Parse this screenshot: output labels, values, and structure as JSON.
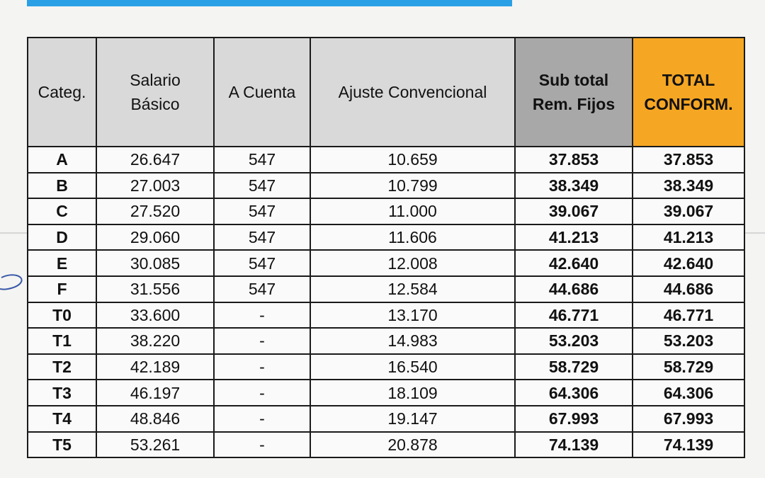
{
  "headers": {
    "categ": "Categ.",
    "salario_l1": "Salario",
    "salario_l2": "Básico",
    "a_cuenta": "A Cuenta",
    "ajuste": "Ajuste Convencional",
    "subtotal_l1": "Sub total",
    "subtotal_l2": "Rem. Fijos",
    "total_l1": "TOTAL",
    "total_l2": "CONFORM."
  },
  "rows": [
    {
      "cat": "A",
      "salario": "26.647",
      "cuenta": "547",
      "ajuste": "10.659",
      "subtotal": "37.853",
      "total": "37.853"
    },
    {
      "cat": "B",
      "salario": "27.003",
      "cuenta": "547",
      "ajuste": "10.799",
      "subtotal": "38.349",
      "total": "38.349"
    },
    {
      "cat": "C",
      "salario": "27.520",
      "cuenta": "547",
      "ajuste": "11.000",
      "subtotal": "39.067",
      "total": "39.067"
    },
    {
      "cat": "D",
      "salario": "29.060",
      "cuenta": "547",
      "ajuste": "11.606",
      "subtotal": "41.213",
      "total": "41.213"
    },
    {
      "cat": "E",
      "salario": "30.085",
      "cuenta": "547",
      "ajuste": "12.008",
      "subtotal": "42.640",
      "total": "42.640"
    },
    {
      "cat": "F",
      "salario": "31.556",
      "cuenta": "547",
      "ajuste": "12.584",
      "subtotal": "44.686",
      "total": "44.686"
    },
    {
      "cat": "T0",
      "salario": "33.600",
      "cuenta": "-",
      "ajuste": "13.170",
      "subtotal": "46.771",
      "total": "46.771"
    },
    {
      "cat": "T1",
      "salario": "38.220",
      "cuenta": "-",
      "ajuste": "14.983",
      "subtotal": "53.203",
      "total": "53.203"
    },
    {
      "cat": "T2",
      "salario": "42.189",
      "cuenta": "-",
      "ajuste": "16.540",
      "subtotal": "58.729",
      "total": "58.729"
    },
    {
      "cat": "T3",
      "salario": "46.197",
      "cuenta": "-",
      "ajuste": "18.109",
      "subtotal": "64.306",
      "total": "64.306"
    },
    {
      "cat": "T4",
      "salario": "48.846",
      "cuenta": "-",
      "ajuste": "19.147",
      "subtotal": "67.993",
      "total": "67.993"
    },
    {
      "cat": "T5",
      "salario": "53.261",
      "cuenta": "-",
      "ajuste": "20.878",
      "subtotal": "74.139",
      "total": "74.139"
    }
  ],
  "colors": {
    "banner": "#29a0e6",
    "header_gray": "#d9d9d9",
    "subtotal_gray": "#a8a8a8",
    "total_orange": "#f5a623"
  }
}
